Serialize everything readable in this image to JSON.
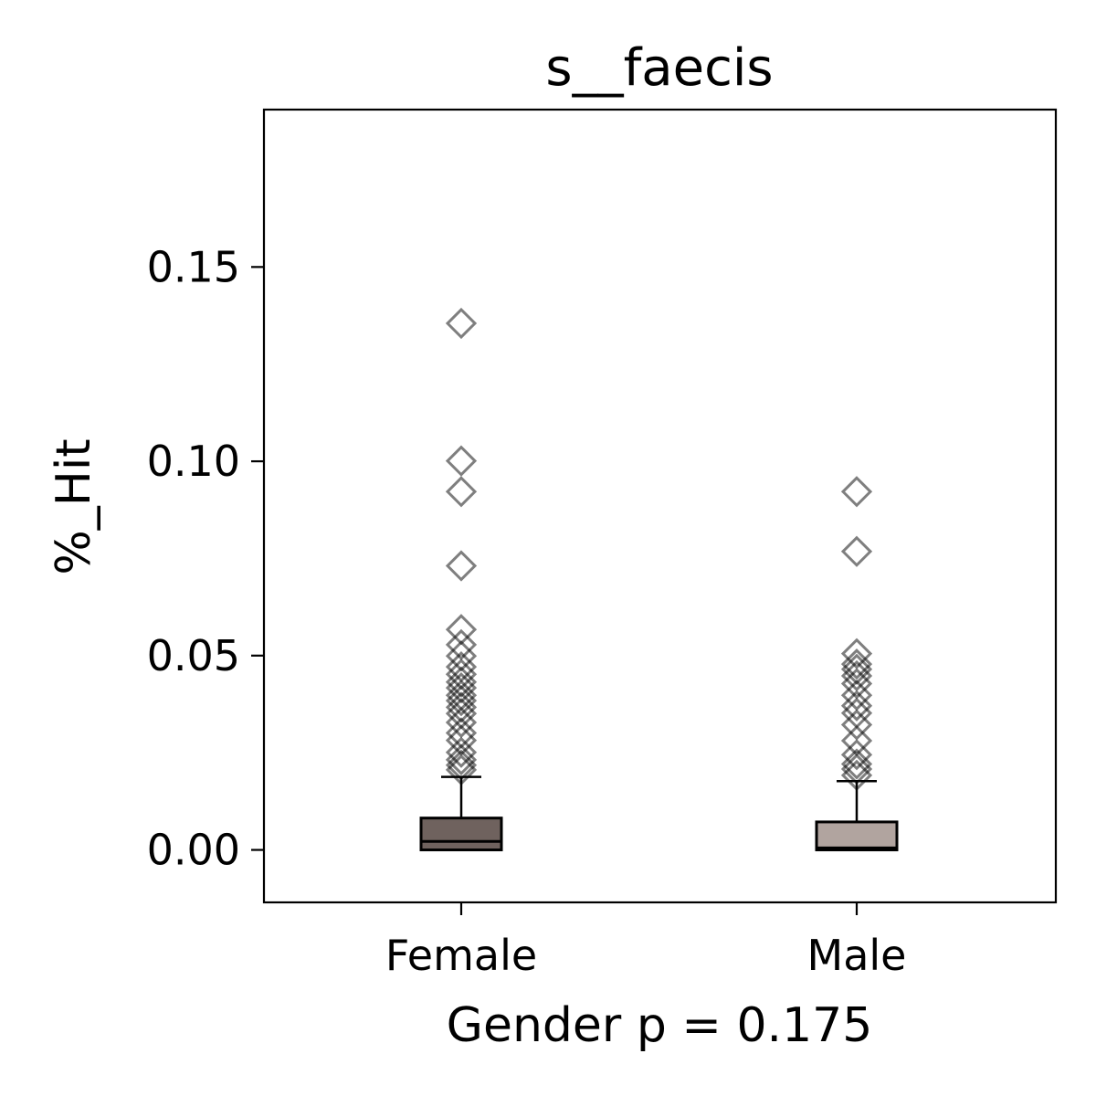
{
  "chart_data": {
    "type": "box",
    "title": "s__faecis",
    "xlabel": "Gender p = 0.175",
    "ylabel": "%_Hit",
    "ylim": [
      -0.0135,
      0.1905
    ],
    "yticks": [
      0.0,
      0.05,
      0.1,
      0.15
    ],
    "ytick_labels": [
      "0.00",
      "0.05",
      "0.10",
      "0.15"
    ],
    "grid": false,
    "legend": "none",
    "categories": [
      "Female",
      "Male"
    ],
    "series": [
      {
        "category": "Female",
        "color": "#6f625e",
        "whisker_low": 0.0,
        "q1": 0.0,
        "median": 0.0022,
        "q3": 0.0082,
        "whisker_high": 0.0188,
        "outliers": [
          0.1355,
          0.1001,
          0.0922,
          0.0731,
          0.0567,
          0.0528,
          0.0499,
          0.0471,
          0.0452,
          0.0432,
          0.0417,
          0.0398,
          0.0384,
          0.0367,
          0.0351,
          0.0328,
          0.0301,
          0.0282,
          0.0251,
          0.0232,
          0.0218,
          0.0206
        ]
      },
      {
        "category": "Male",
        "color": "#b1a49f",
        "whisker_low": 0.0,
        "q1": 0.0,
        "median": 0.0005,
        "q3": 0.0072,
        "whisker_high": 0.0177,
        "outliers": [
          0.0922,
          0.0768,
          0.0505,
          0.0478,
          0.0465,
          0.0448,
          0.0428,
          0.0398,
          0.0371,
          0.0352,
          0.0322,
          0.0281,
          0.0245,
          0.0221,
          0.0208,
          0.0192
        ]
      }
    ]
  }
}
